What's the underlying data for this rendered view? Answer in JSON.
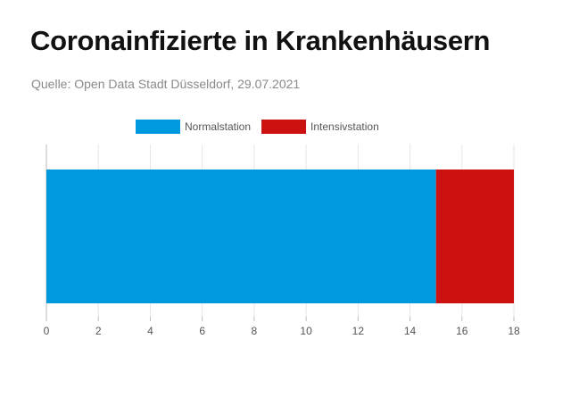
{
  "title": "Coronainfizierte in Krankenhäusern",
  "subtitle": "Quelle: Open Data Stadt Düsseldorf, 29.07.2021",
  "chart_data": {
    "type": "bar",
    "orientation": "horizontal",
    "stacked": true,
    "categories": [
      ""
    ],
    "series": [
      {
        "name": "Normalstation",
        "values": [
          15
        ],
        "color": "#0099dd"
      },
      {
        "name": "Intensivstation",
        "values": [
          3
        ],
        "color": "#cc1111"
      }
    ],
    "xlim": [
      0,
      18
    ],
    "xticks": [
      0,
      2,
      4,
      6,
      8,
      10,
      12,
      14,
      16,
      18
    ],
    "grid": true,
    "legend": "top-center"
  }
}
